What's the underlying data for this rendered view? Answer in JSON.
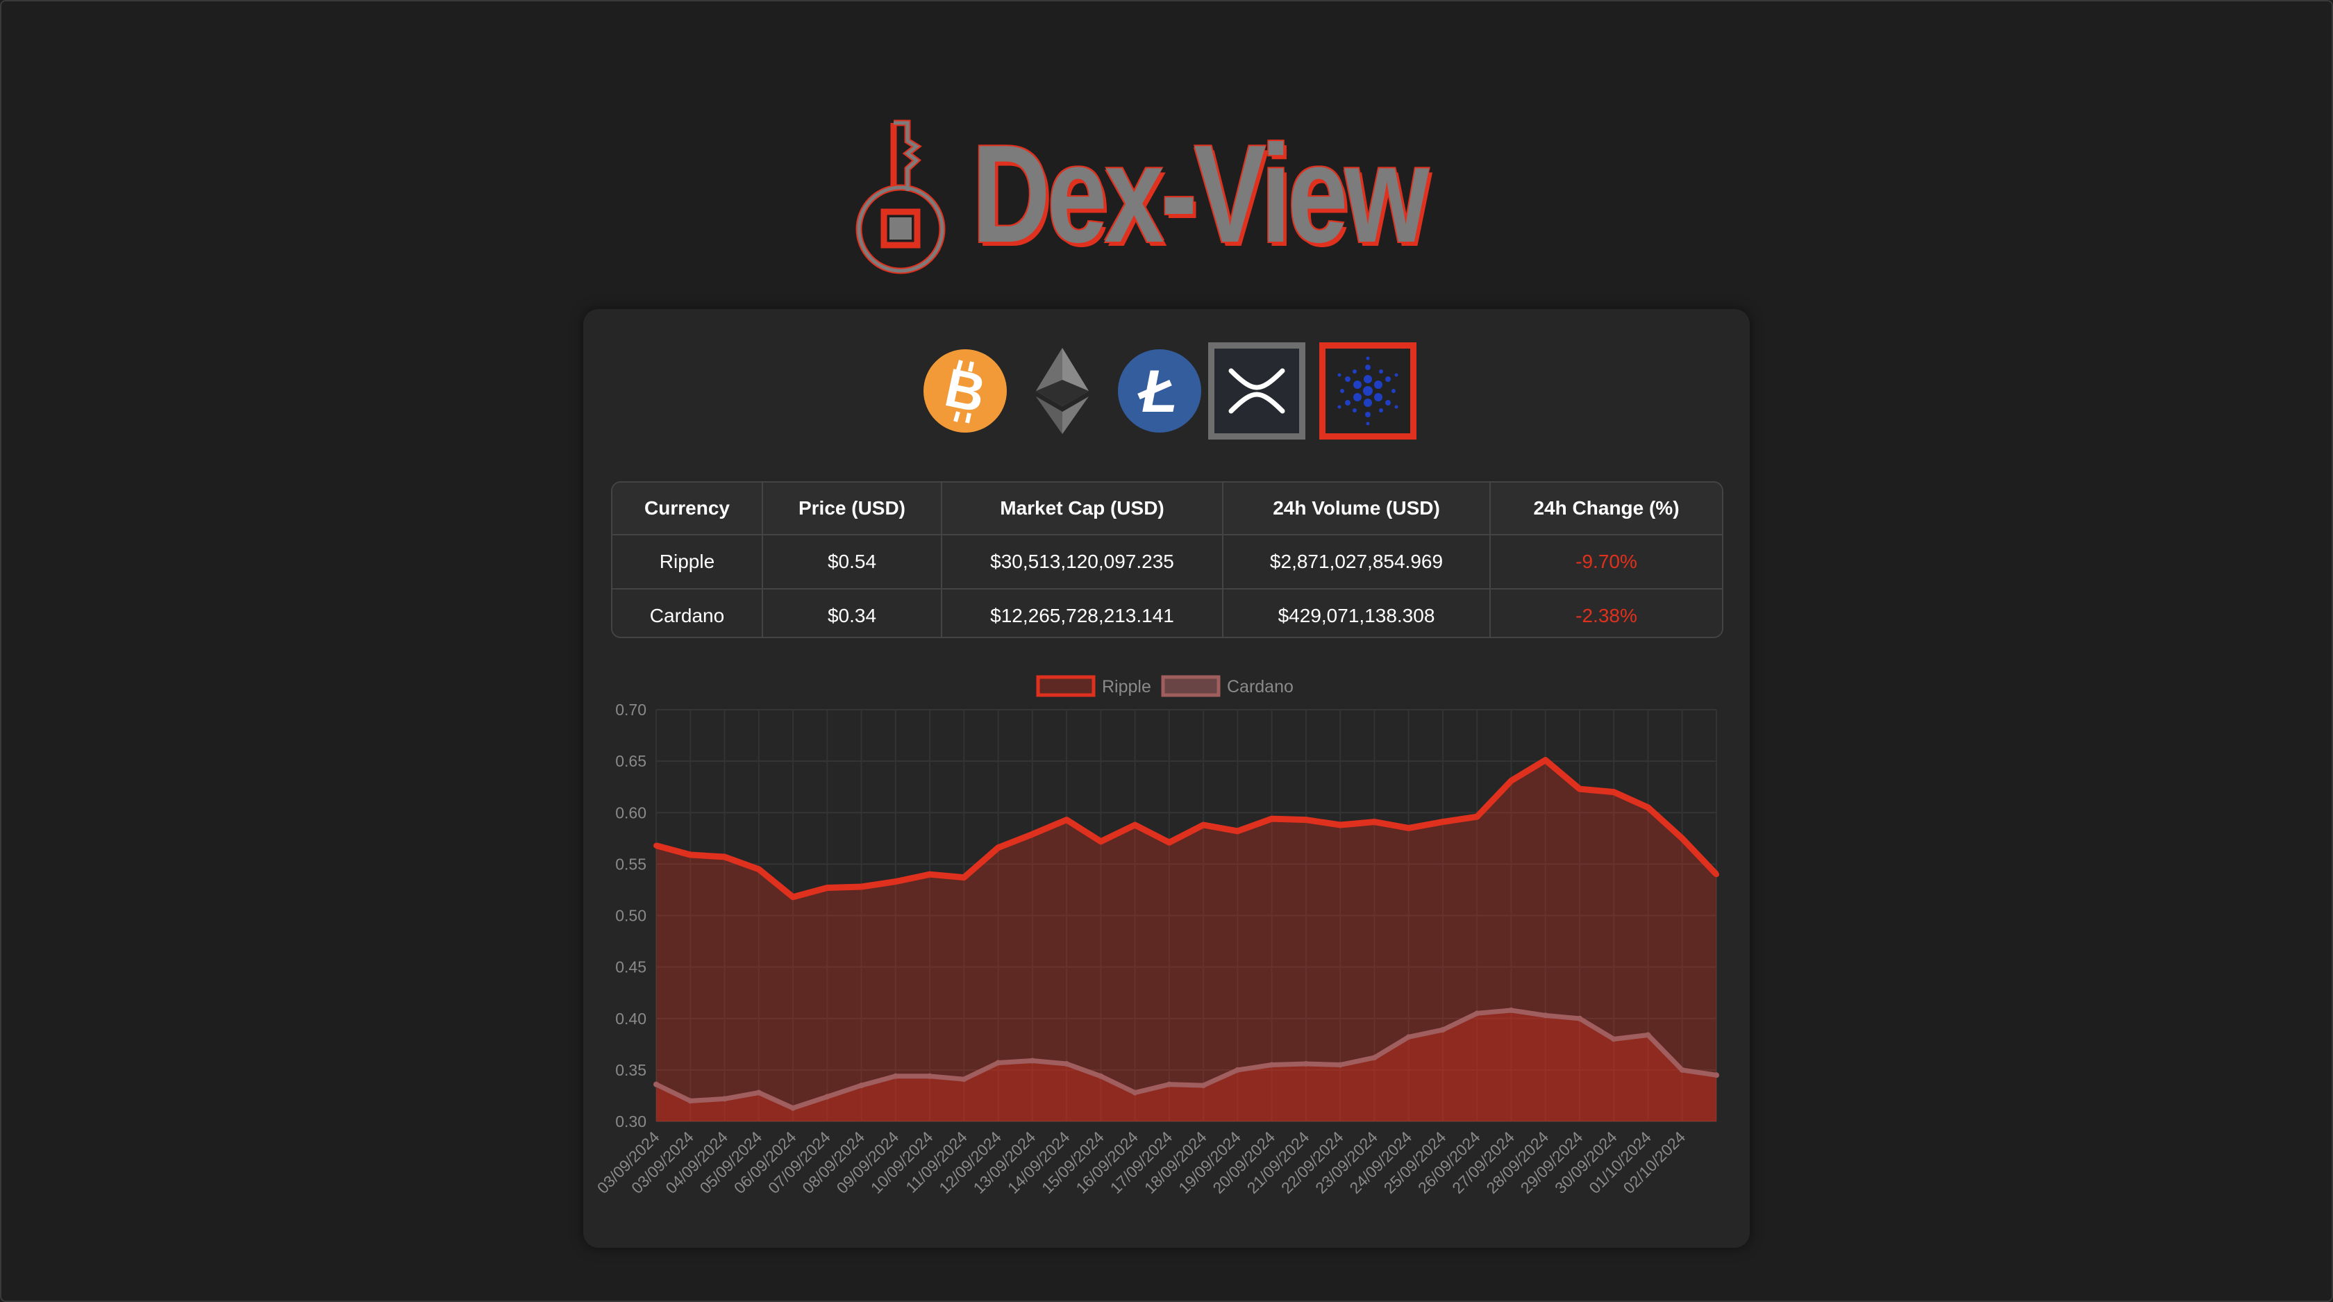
{
  "app": {
    "brand": "Dex-View"
  },
  "colors": {
    "accent": "#e0301e",
    "background": "#1e1e1e",
    "card": "#262626",
    "cardano_line": "#a15e5e"
  },
  "coins": [
    {
      "name": "Bitcoin",
      "icon": "bitcoin-icon",
      "selected": false
    },
    {
      "name": "Ethereum",
      "icon": "ethereum-icon",
      "selected": false
    },
    {
      "name": "Litecoin",
      "icon": "litecoin-icon",
      "selected": false
    },
    {
      "name": "Ripple",
      "icon": "ripple-icon",
      "selected": true
    },
    {
      "name": "Cardano",
      "icon": "cardano-icon",
      "selected": true
    }
  ],
  "table": {
    "headers": [
      "Currency",
      "Price (USD)",
      "Market Cap (USD)",
      "24h Volume (USD)",
      "24h Change (%)"
    ],
    "rows": [
      [
        "Ripple",
        "$0.54",
        "$30,513,120,097.235",
        "$2,871,027,854.969",
        "-9.70%"
      ],
      [
        "Cardano",
        "$0.34",
        "$12,265,728,213.141",
        "$429,071,138.308",
        "-2.38%"
      ]
    ]
  },
  "chart_data": {
    "type": "area",
    "legend": [
      "Ripple",
      "Cardano"
    ],
    "legend_position": "top-center",
    "grid": true,
    "ylim": [
      0.3,
      0.7
    ],
    "yticks": [
      "0.70",
      "0.65",
      "0.60",
      "0.55",
      "0.50",
      "0.45",
      "0.40",
      "0.35",
      "0.30"
    ],
    "x": [
      "03/09/2024",
      "03/09/2024",
      "04/09/2024",
      "05/09/2024",
      "06/09/2024",
      "07/09/2024",
      "08/09/2024",
      "09/09/2024",
      "10/09/2024",
      "11/09/2024",
      "12/09/2024",
      "13/09/2024",
      "14/09/2024",
      "15/09/2024",
      "16/09/2024",
      "17/09/2024",
      "18/09/2024",
      "19/09/2024",
      "20/09/2024",
      "21/09/2024",
      "22/09/2024",
      "23/09/2024",
      "24/09/2024",
      "25/09/2024",
      "26/09/2024",
      "27/09/2024",
      "28/09/2024",
      "29/09/2024",
      "30/09/2024",
      "01/10/2024",
      "02/10/2024",
      ""
    ],
    "series": [
      {
        "name": "Ripple",
        "color": "#e0301e",
        "values": [
          0.568,
          0.559,
          0.557,
          0.545,
          0.518,
          0.527,
          0.528,
          0.533,
          0.54,
          0.537,
          0.566,
          0.579,
          0.593,
          0.572,
          0.588,
          0.571,
          0.588,
          0.582,
          0.594,
          0.593,
          0.588,
          0.591,
          0.585,
          0.591,
          0.596,
          0.631,
          0.651,
          0.623,
          0.62,
          0.605,
          0.575,
          0.54
        ]
      },
      {
        "name": "Cardano",
        "color": "#a15e5e",
        "values": [
          0.336,
          0.32,
          0.322,
          0.328,
          0.313,
          0.324,
          0.335,
          0.344,
          0.344,
          0.341,
          0.357,
          0.359,
          0.356,
          0.344,
          0.328,
          0.336,
          0.335,
          0.35,
          0.355,
          0.356,
          0.355,
          0.362,
          0.382,
          0.389,
          0.405,
          0.408,
          0.403,
          0.4,
          0.38,
          0.384,
          0.35,
          0.345
        ]
      }
    ]
  }
}
